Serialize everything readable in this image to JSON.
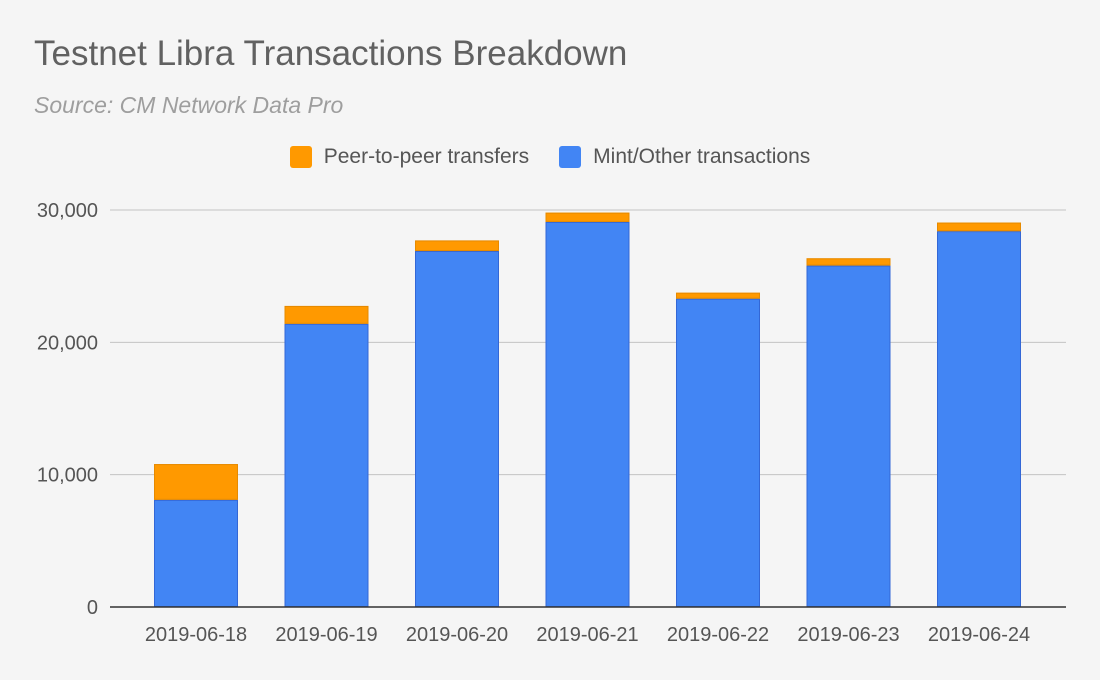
{
  "chart_data": {
    "type": "bar",
    "stacked": true,
    "title": "Testnet Libra Transactions Breakdown",
    "subtitle": "Source: CM Network Data Pro",
    "xlabel": "",
    "ylabel": "",
    "categories": [
      "2019-06-18",
      "2019-06-19",
      "2019-06-20",
      "2019-06-21",
      "2019-06-22",
      "2019-06-23",
      "2019-06-24"
    ],
    "series": [
      {
        "name": "Mint/Other transactions",
        "color": "#4285f4",
        "values": [
          8100,
          21400,
          26900,
          29100,
          23300,
          25800,
          28400
        ]
      },
      {
        "name": "Peer-to-peer transfers",
        "color": "#ff9900",
        "values": [
          2700,
          1350,
          800,
          700,
          450,
          550,
          650
        ]
      }
    ],
    "legend_order": [
      1,
      0
    ],
    "legend_position": "top-center",
    "ylim": [
      0,
      30000
    ],
    "yticks": [
      0,
      10000,
      20000,
      30000
    ],
    "ytick_labels": [
      "0",
      "10,000",
      "20,000",
      "30,000"
    ],
    "grid": true
  }
}
